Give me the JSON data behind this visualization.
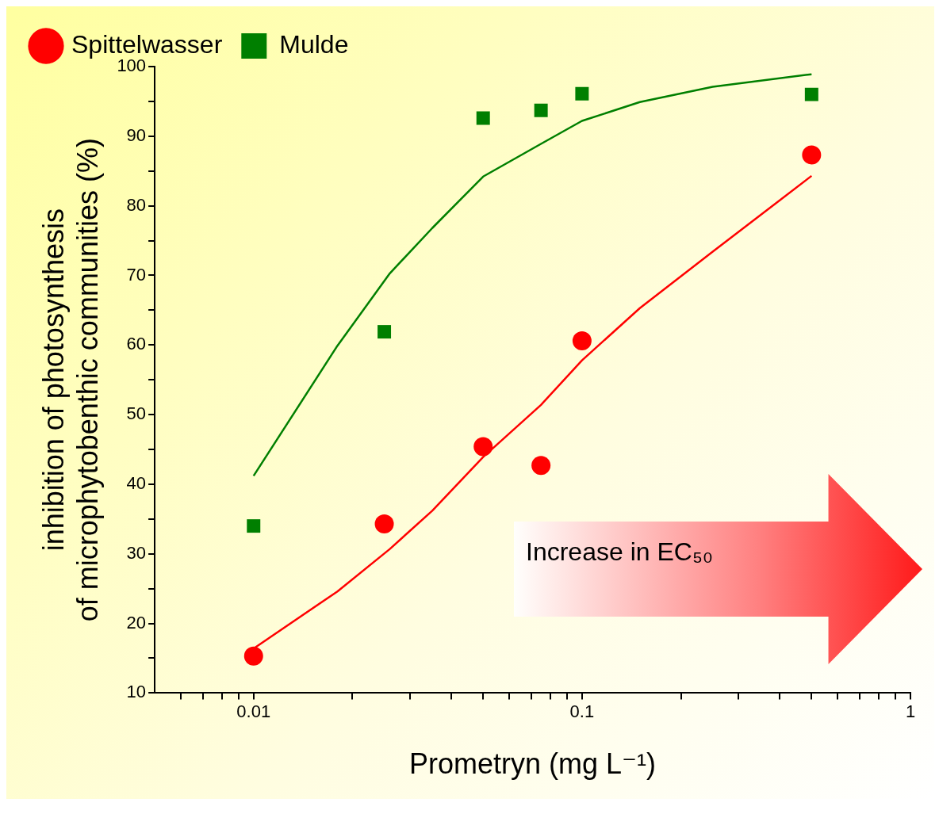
{
  "chart_data": {
    "type": "scatter",
    "xlabel": "Prometryn (mg L⁻¹)",
    "ylabel": "inhibition of photosynthesis\nof microphytobenthic communities (%)",
    "log": "x",
    "grid": false,
    "legend": "top left",
    "xlim": [
      0.005,
      1
    ],
    "xticks": [
      {
        "value": 0.006,
        "label": null
      },
      {
        "value": 0.007,
        "label": null
      },
      {
        "value": 0.008,
        "label": null
      },
      {
        "value": 0.009,
        "label": null
      },
      0.01,
      {
        "value": 0.02,
        "label": null
      },
      {
        "value": 0.03,
        "label": null
      },
      {
        "value": 0.04,
        "label": null
      },
      {
        "value": 0.05,
        "label": null
      },
      {
        "value": 0.06,
        "label": null
      },
      {
        "value": 0.07,
        "label": null
      },
      {
        "value": 0.08,
        "label": null
      },
      {
        "value": 0.09,
        "label": null
      },
      0.1,
      {
        "value": 0.2,
        "label": null
      },
      {
        "value": 0.3,
        "label": null
      },
      {
        "value": 0.4,
        "label": null
      },
      {
        "value": 0.5,
        "label": null
      },
      {
        "value": 0.6,
        "label": null
      },
      {
        "value": 0.7,
        "label": null
      },
      {
        "value": 0.8,
        "label": null
      },
      {
        "value": 0.9,
        "label": null
      },
      1
    ],
    "ylim": [
      10,
      100
    ],
    "yticks": [
      10,
      {
        "value": 15,
        "label": null
      },
      20,
      {
        "value": 25,
        "label": null
      },
      30,
      {
        "value": 35,
        "label": null
      },
      40,
      {
        "value": 45,
        "label": null
      },
      50,
      {
        "value": 55,
        "label": null
      },
      60,
      {
        "value": 65,
        "label": null
      },
      70,
      {
        "value": 75,
        "label": null
      },
      80,
      {
        "value": 85,
        "label": null
      },
      90,
      {
        "value": 95,
        "label": null
      },
      100
    ],
    "series": [
      {
        "name": "Spittelwasser",
        "type": "scatter",
        "marker": "circle",
        "color": "#ff0000",
        "x": [
          0.01,
          0.025,
          0.05,
          0.075,
          0.1,
          0.5
        ],
        "values": [
          15.3,
          34.3,
          45.4,
          42.7,
          60.6,
          87.3
        ]
      },
      {
        "name": "Mulde",
        "type": "scatter",
        "marker": "square",
        "color": "#007f00",
        "x": [
          0.01,
          0.025,
          0.05,
          0.075,
          0.1,
          0.5
        ],
        "values": [
          34.0,
          61.9,
          92.6,
          93.7,
          96.1,
          96.0
        ]
      },
      {
        "type": "line",
        "marker": "none",
        "line_style": "solid",
        "color": "#ff0000",
        "x": [
          0.01,
          0.018,
          0.026,
          0.035,
          0.05,
          0.075,
          0.1,
          0.15,
          0.25,
          0.5
        ],
        "values": [
          16.4,
          24.6,
          30.7,
          36.2,
          43.9,
          51.4,
          57.8,
          65.3,
          73.4,
          84.3
        ]
      },
      {
        "type": "line",
        "marker": "none",
        "line_style": "solid",
        "color": "#007f00",
        "x": [
          0.01,
          0.018,
          0.026,
          0.035,
          0.05,
          0.075,
          0.1,
          0.15,
          0.25,
          0.5
        ],
        "values": [
          41.2,
          59.9,
          70.3,
          76.8,
          84.2,
          88.9,
          92.2,
          94.9,
          97.1,
          98.9
        ]
      }
    ],
    "annotations": [
      "Increase in EC₅₀"
    ]
  }
}
